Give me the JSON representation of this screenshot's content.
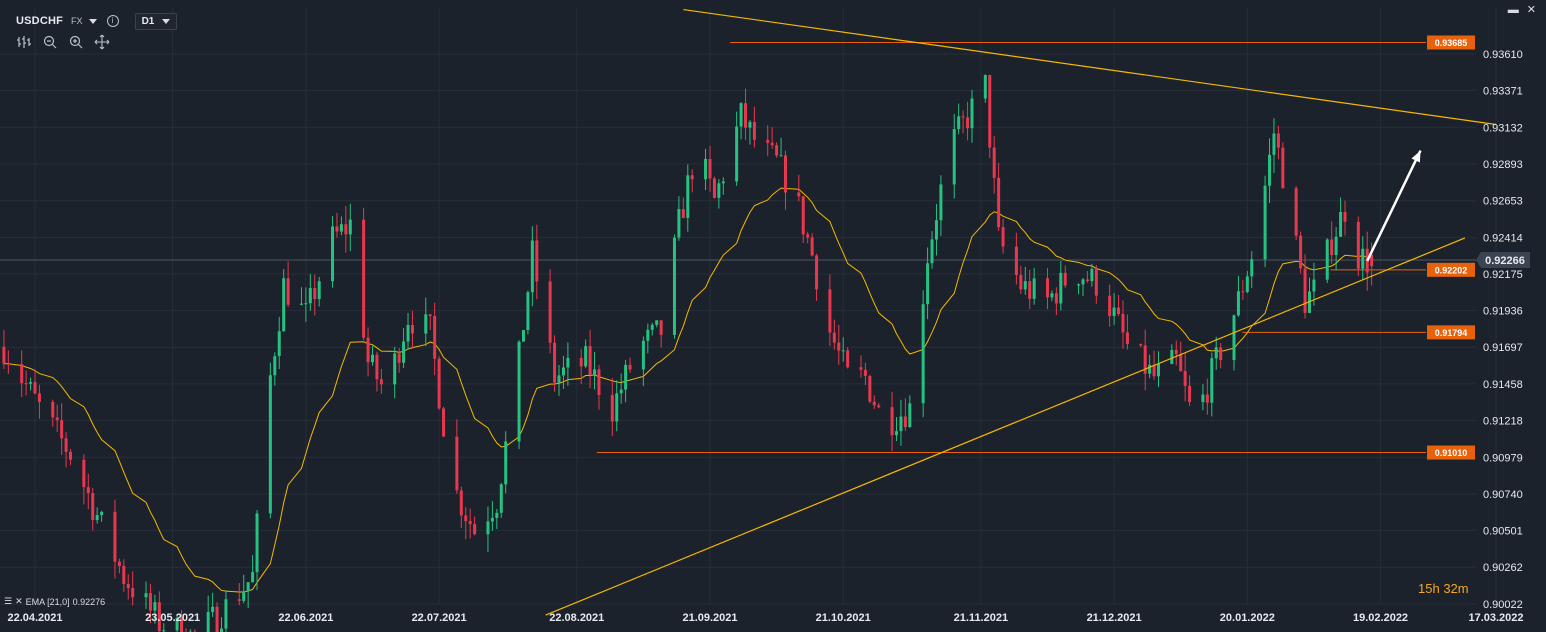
{
  "header": {
    "symbol": "USDCHF",
    "market": "FX",
    "info_icon": "info-icon",
    "timeframe": "D1"
  },
  "window_controls": [
    "minimize-icon",
    "close-icon"
  ],
  "tools": [
    "bar-style-icon",
    "zoom-out-icon",
    "zoom-in-icon",
    "crosshair-move-icon"
  ],
  "indicator": {
    "label": "EMA [21,0]",
    "value": "0.92276",
    "color": "#f5b800"
  },
  "countdown": {
    "hours": "15",
    "h_unit": "h",
    "minutes": "32",
    "m_unit": "m"
  },
  "colors": {
    "background": "#1c222b",
    "bull": "#26c281",
    "bear": "#e8384f",
    "level": "#e8620c",
    "trendline": "#f5b800",
    "arrow": "#ffffff"
  },
  "chart_data": {
    "type": "candlestick",
    "symbol": "USDCHF",
    "timeframe": "D1",
    "ylim": [
      0.90022,
      0.9375
    ],
    "y_ticks": [
      "0.93610",
      "0.93371",
      "0.93132",
      "0.92893",
      "0.92653",
      "0.92414",
      "0.92175",
      "0.91936",
      "0.91697",
      "0.91458",
      "0.91218",
      "0.90979",
      "0.90740",
      "0.90501",
      "0.90262",
      "0.90022"
    ],
    "x_ticks": [
      "22.04.2021",
      "23.05.2021",
      "22.06.2021",
      "22.07.2021",
      "22.08.2021",
      "21.09.2021",
      "21.10.2021",
      "21.11.2021",
      "21.12.2021",
      "20.01.2022",
      "19.02.2022",
      "17.03.2022"
    ],
    "current_price": "0.92266",
    "levels": [
      {
        "value": "0.93685",
        "from": "21.09.2021"
      },
      {
        "value": "0.92202",
        "from": "19.02.2022"
      },
      {
        "value": "0.91794",
        "from": "20.01.2022"
      },
      {
        "value": "0.91010",
        "from": "22.08.2021"
      }
    ],
    "trendlines": [
      {
        "name": "resistance",
        "from": [
          "2021-09-15",
          0.939
        ],
        "to": [
          "2022-03-17",
          0.9315
        ]
      },
      {
        "name": "support",
        "from": [
          "2021-08-15",
          0.8995
        ],
        "to": [
          "2022-03-10",
          0.9241
        ]
      }
    ],
    "arrow": {
      "from": [
        "2022-02-16",
        0.9226
      ],
      "to": [
        "2022-02-28",
        0.9298
      ]
    },
    "anchors": [
      [
        "2021-04-15",
        0.917
      ],
      [
        "2021-04-23",
        0.913
      ],
      [
        "2021-04-30",
        0.91
      ],
      [
        "2021-05-06",
        0.906
      ],
      [
        "2021-05-12",
        0.902
      ],
      [
        "2021-05-20",
        0.899
      ],
      [
        "2021-05-28",
        0.898
      ],
      [
        "2021-06-04",
        0.9
      ],
      [
        "2021-06-10",
        0.902
      ],
      [
        "2021-06-14",
        0.915
      ],
      [
        "2021-06-17",
        0.921
      ],
      [
        "2021-06-22",
        0.919
      ],
      [
        "2021-06-28",
        0.924
      ],
      [
        "2021-07-02",
        0.925
      ],
      [
        "2021-07-06",
        0.916
      ],
      [
        "2021-07-10",
        0.914
      ],
      [
        "2021-07-15",
        0.919
      ],
      [
        "2021-07-20",
        0.918
      ],
      [
        "2021-07-25",
        0.908
      ],
      [
        "2021-07-30",
        0.905
      ],
      [
        "2021-08-04",
        0.907
      ],
      [
        "2021-08-08",
        0.914
      ],
      [
        "2021-08-12",
        0.923
      ],
      [
        "2021-08-17",
        0.915
      ],
      [
        "2021-08-24",
        0.916
      ],
      [
        "2021-08-30",
        0.913
      ],
      [
        "2021-09-05",
        0.917
      ],
      [
        "2021-09-10",
        0.918
      ],
      [
        "2021-09-14",
        0.925
      ],
      [
        "2021-09-18",
        0.93
      ],
      [
        "2021-09-22",
        0.9265
      ],
      [
        "2021-09-28",
        0.932
      ],
      [
        "2021-10-02",
        0.93
      ],
      [
        "2021-10-06",
        0.929
      ],
      [
        "2021-10-10",
        0.927
      ],
      [
        "2021-10-14",
        0.923
      ],
      [
        "2021-10-18",
        0.918
      ],
      [
        "2021-10-22",
        0.915
      ],
      [
        "2021-10-26",
        0.915
      ],
      [
        "2021-10-30",
        0.912
      ],
      [
        "2021-11-05",
        0.913
      ],
      [
        "2021-11-09",
        0.923
      ],
      [
        "2021-11-14",
        0.93
      ],
      [
        "2021-11-18",
        0.932
      ],
      [
        "2021-11-22",
        0.934
      ],
      [
        "2021-11-25",
        0.924
      ],
      [
        "2021-11-30",
        0.921
      ],
      [
        "2021-12-06",
        0.92
      ],
      [
        "2021-12-12",
        0.922
      ],
      [
        "2021-12-18",
        0.921
      ],
      [
        "2021-12-24",
        0.917
      ],
      [
        "2021-12-30",
        0.915
      ],
      [
        "2022-01-04",
        0.916
      ],
      [
        "2022-01-08",
        0.912
      ],
      [
        "2022-01-13",
        0.916
      ],
      [
        "2022-01-18",
        0.92
      ],
      [
        "2022-01-22",
        0.924
      ],
      [
        "2022-01-26",
        0.931
      ],
      [
        "2022-01-29",
        0.927
      ],
      [
        "2022-02-02",
        0.92
      ],
      [
        "2022-02-05",
        0.921
      ],
      [
        "2022-02-08",
        0.924
      ],
      [
        "2022-02-11",
        0.926
      ],
      [
        "2022-02-14",
        0.923
      ],
      [
        "2022-02-17",
        0.9224
      ]
    ]
  }
}
